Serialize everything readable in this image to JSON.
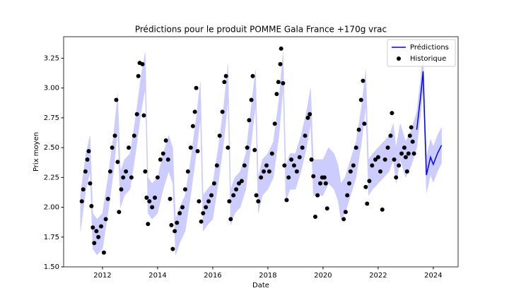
{
  "chart_data": {
    "type": "line",
    "title": "Prédictions pour le produit POMME Gala France +170g vrac",
    "x_label": "Date",
    "y_label": "Prix moyen",
    "xlim": [
      2010.59,
      2024.9
    ],
    "ylim": [
      1.5,
      3.43
    ],
    "xticks": [
      2012,
      2014,
      2016,
      2018,
      2020,
      2022,
      2024
    ],
    "yticks": [
      {
        "value": 1.5,
        "label": "1.50"
      },
      {
        "value": 1.75,
        "label": "1.75"
      },
      {
        "value": 2.0,
        "label": "2.00"
      },
      {
        "value": 2.25,
        "label": "2.25"
      },
      {
        "value": 2.5,
        "label": "2.50"
      },
      {
        "value": 2.75,
        "label": "2.75"
      },
      {
        "value": 3.0,
        "label": "3.00"
      },
      {
        "value": 3.25,
        "label": "3.25"
      }
    ],
    "grid": false,
    "legend": "upper right",
    "band": {
      "color": "#ccccff",
      "x": [
        2011.2,
        2011.4,
        2011.55,
        2011.65,
        2011.8,
        2012.0,
        2012.2,
        2012.4,
        2012.55,
        2012.65,
        2012.8,
        2013.0,
        2013.2,
        2013.4,
        2013.55,
        2013.65,
        2013.8,
        2014.0,
        2014.2,
        2014.4,
        2014.55,
        2014.65,
        2014.8,
        2015.0,
        2015.2,
        2015.4,
        2015.55,
        2015.65,
        2015.8,
        2016.0,
        2016.2,
        2016.4,
        2016.55,
        2016.65,
        2016.8,
        2017.0,
        2017.2,
        2017.4,
        2017.55,
        2017.65,
        2017.8,
        2018.0,
        2018.2,
        2018.4,
        2018.55,
        2018.65,
        2018.8,
        2019.0,
        2019.2,
        2019.4,
        2019.55,
        2019.65,
        2019.8,
        2020.0,
        2020.2,
        2020.4,
        2020.55,
        2020.65,
        2020.8,
        2021.0,
        2021.2,
        2021.4,
        2021.55,
        2021.65,
        2021.8,
        2022.0,
        2022.2,
        2022.4,
        2022.55,
        2022.65,
        2022.8,
        2023.0,
        2023.2,
        2023.4,
        2023.55,
        2023.63,
        2023.75,
        2023.9,
        2024.0,
        2024.15,
        2024.3
      ],
      "lower": [
        1.8,
        2.15,
        2.3,
        1.65,
        1.6,
        1.65,
        1.95,
        2.3,
        2.65,
        2.0,
        2.1,
        2.15,
        2.45,
        2.8,
        3.0,
        1.95,
        1.9,
        1.95,
        2.15,
        2.3,
        2.2,
        1.6,
        1.7,
        1.8,
        2.1,
        2.45,
        2.75,
        1.8,
        1.85,
        1.9,
        2.2,
        2.55,
        2.9,
        1.85,
        1.95,
        2.0,
        2.15,
        2.55,
        2.85,
        1.95,
        2.1,
        2.15,
        2.25,
        2.6,
        3.0,
        2.05,
        2.15,
        2.15,
        2.3,
        2.5,
        2.7,
        2.1,
        2.1,
        2.1,
        2.2,
        2.15,
        2.05,
        1.9,
        1.95,
        2.1,
        2.25,
        2.55,
        2.85,
        2.1,
        2.15,
        2.2,
        2.25,
        2.3,
        2.4,
        2.2,
        2.4,
        2.25,
        2.35,
        2.5,
        2.8,
        2.99,
        2.12,
        2.27,
        2.21,
        2.3,
        2.37
      ],
      "upper": [
        2.1,
        2.45,
        2.6,
        1.95,
        1.9,
        1.95,
        2.25,
        2.6,
        2.95,
        2.3,
        2.4,
        2.45,
        2.75,
        3.1,
        3.3,
        2.25,
        2.2,
        2.25,
        2.45,
        2.6,
        2.5,
        1.9,
        2.0,
        2.1,
        2.4,
        2.75,
        3.05,
        2.1,
        2.15,
        2.2,
        2.5,
        2.85,
        3.2,
        2.15,
        2.25,
        2.3,
        2.45,
        2.85,
        3.15,
        2.25,
        2.4,
        2.45,
        2.55,
        2.9,
        3.3,
        2.35,
        2.45,
        2.45,
        2.6,
        2.8,
        3.0,
        2.4,
        2.4,
        2.4,
        2.5,
        2.45,
        2.35,
        2.2,
        2.25,
        2.4,
        2.55,
        2.85,
        3.15,
        2.4,
        2.45,
        2.5,
        2.55,
        2.6,
        2.7,
        2.5,
        2.7,
        2.55,
        2.65,
        2.8,
        3.1,
        3.29,
        2.42,
        2.57,
        2.51,
        2.6,
        2.67
      ]
    },
    "series": [
      {
        "name": "Prédictions",
        "type": "line",
        "color": "#0000ff",
        "x": [
          2023.4,
          2023.55,
          2023.63,
          2023.75,
          2023.9,
          2024.0,
          2024.15,
          2024.3
        ],
        "values": [
          2.65,
          2.95,
          3.14,
          2.27,
          2.42,
          2.36,
          2.45,
          2.52
        ]
      },
      {
        "name": "Historique",
        "type": "scatter",
        "color": "#000000",
        "x": [
          2011.25,
          2011.3,
          2011.38,
          2011.45,
          2011.5,
          2011.55,
          2011.6,
          2011.65,
          2011.7,
          2011.78,
          2011.85,
          2011.95,
          2012.05,
          2012.12,
          2012.2,
          2012.28,
          2012.35,
          2012.45,
          2012.5,
          2012.55,
          2012.6,
          2012.68,
          2012.75,
          2012.85,
          2012.95,
          2013.05,
          2013.15,
          2013.25,
          2013.3,
          2013.35,
          2013.45,
          2013.5,
          2013.55,
          2013.6,
          2013.65,
          2013.7,
          2013.8,
          2013.9,
          2014.0,
          2014.1,
          2014.2,
          2014.3,
          2014.38,
          2014.45,
          2014.5,
          2014.55,
          2014.62,
          2014.7,
          2014.8,
          2014.9,
          2015.0,
          2015.1,
          2015.2,
          2015.28,
          2015.35,
          2015.4,
          2015.45,
          2015.5,
          2015.58,
          2015.65,
          2015.75,
          2015.85,
          2015.95,
          2016.05,
          2016.15,
          2016.25,
          2016.35,
          2016.42,
          2016.48,
          2016.55,
          2016.6,
          2016.65,
          2016.75,
          2016.85,
          2016.95,
          2017.05,
          2017.15,
          2017.25,
          2017.32,
          2017.4,
          2017.45,
          2017.52,
          2017.58,
          2017.65,
          2017.75,
          2017.85,
          2017.95,
          2018.05,
          2018.15,
          2018.25,
          2018.32,
          2018.38,
          2018.45,
          2018.48,
          2018.55,
          2018.6,
          2018.68,
          2018.75,
          2018.85,
          2018.95,
          2019.05,
          2019.15,
          2019.25,
          2019.35,
          2019.45,
          2019.52,
          2019.58,
          2019.65,
          2019.72,
          2019.8,
          2019.9,
          2019.97,
          2020.05,
          2020.1,
          2020.15,
          2020.75,
          2020.82,
          2020.88,
          2020.95,
          2021.0,
          2021.1,
          2021.2,
          2021.3,
          2021.38,
          2021.45,
          2021.5,
          2021.55,
          2021.6,
          2021.68,
          2021.78,
          2021.9,
          2022.0,
          2022.08,
          2022.15,
          2022.25,
          2022.35,
          2022.45,
          2022.5,
          2022.58,
          2022.65,
          2022.75,
          2022.85,
          2022.95,
          2023.0,
          2023.05,
          2023.1,
          2023.15,
          2023.2,
          2023.25,
          2023.3
        ],
        "values": [
          2.05,
          2.15,
          2.3,
          2.4,
          2.47,
          2.2,
          2.01,
          1.83,
          1.7,
          1.8,
          1.75,
          1.84,
          1.62,
          1.9,
          2.07,
          2.3,
          2.5,
          2.6,
          2.9,
          2.38,
          1.96,
          2.15,
          2.25,
          2.3,
          2.5,
          2.25,
          2.6,
          2.78,
          3.1,
          3.21,
          3.2,
          2.77,
          2.3,
          2.08,
          1.86,
          2.05,
          2.0,
          2.08,
          2.25,
          2.4,
          2.45,
          2.56,
          2.4,
          2.07,
          1.85,
          1.65,
          1.8,
          1.87,
          1.95,
          2.0,
          2.15,
          2.3,
          2.5,
          2.68,
          2.8,
          3.0,
          2.47,
          2.05,
          1.88,
          1.95,
          2.0,
          2.05,
          2.1,
          2.2,
          2.35,
          2.6,
          2.8,
          3.05,
          3.1,
          2.5,
          2.05,
          1.9,
          2.1,
          2.15,
          2.2,
          2.22,
          2.35,
          2.5,
          2.73,
          2.9,
          3.1,
          2.48,
          2.1,
          2.05,
          2.25,
          2.3,
          2.35,
          2.3,
          2.45,
          2.7,
          2.95,
          3.05,
          3.2,
          3.33,
          3.04,
          2.35,
          2.06,
          2.25,
          2.4,
          2.35,
          2.3,
          2.42,
          2.5,
          2.6,
          2.75,
          2.78,
          2.4,
          2.26,
          1.92,
          2.1,
          2.2,
          2.25,
          2.25,
          2.2,
          1.99,
          1.9,
          1.96,
          2.1,
          2.2,
          2.3,
          2.35,
          2.5,
          2.65,
          2.9,
          3.06,
          2.7,
          2.17,
          2.03,
          2.22,
          2.35,
          2.4,
          2.42,
          2.3,
          1.98,
          2.4,
          2.5,
          2.6,
          2.79,
          2.4,
          2.25,
          2.35,
          2.45,
          2.5,
          2.42,
          2.3,
          2.45,
          2.6,
          2.67,
          2.55,
          2.45
        ]
      }
    ]
  }
}
